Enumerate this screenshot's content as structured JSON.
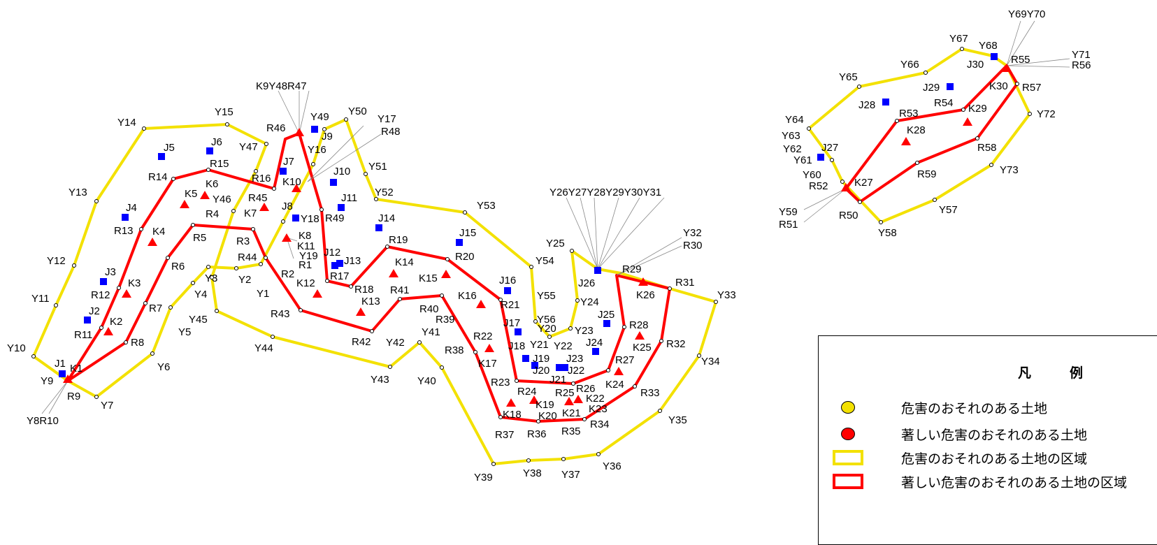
{
  "legend": {
    "title": "凡　例",
    "items": [
      {
        "symbol": "yellow-circle",
        "label": "危害のおそれのある土地"
      },
      {
        "symbol": "red-circle",
        "label": "著しい危害のおそれのある土地"
      },
      {
        "symbol": "yellow-rectangle",
        "label": "危害のおそれのある土地の区域"
      },
      {
        "symbol": "red-rectangle",
        "label": "著しい危害のおそれのある土地の区域"
      }
    ]
  },
  "colors": {
    "yellow_zone": "#f3e100",
    "red_zone": "#ff0000",
    "marker_j": "#0000ff",
    "marker_k": "#ff0000"
  },
  "labels": [
    "Y14",
    "Y15",
    "Y13",
    "Y12",
    "Y11",
    "Y10",
    "Y9",
    "Y8R10",
    "Y7",
    "Y6",
    "Y5",
    "Y4",
    "Y45",
    "Y3",
    "Y2",
    "Y1",
    "Y44",
    "Y43",
    "Y42",
    "Y41",
    "Y40",
    "Y39",
    "Y38",
    "Y37",
    "Y36",
    "Y35",
    "Y34",
    "Y33",
    "Y32",
    "R30",
    "R31",
    "Y26Y27Y28Y29Y30Y31",
    "Y25",
    "Y24",
    "Y23",
    "Y22",
    "Y21",
    "Y20",
    "Y56",
    "Y55",
    "Y54",
    "Y53",
    "Y52",
    "Y51",
    "Y50",
    "Y49",
    "Y17",
    "R48",
    "Y16",
    "Y47",
    "Y46",
    "K9Y48R47",
    "R46",
    "J9",
    "J10",
    "J11",
    "R49",
    "J14",
    "R19",
    "J15",
    "R20",
    "J16",
    "R21",
    "J17",
    "J18",
    "J19",
    "J20",
    "J21",
    "J22",
    "J23",
    "J24",
    "J25",
    "J26",
    "R29",
    "K26",
    "R28",
    "K25",
    "R32",
    "R27",
    "K24",
    "R33",
    "R26",
    "K22",
    "K23",
    "R34",
    "R35",
    "K21",
    "K20",
    "R25",
    "K19",
    "R24",
    "R23",
    "K18",
    "R37",
    "R36",
    "K17",
    "R22",
    "R38",
    "R39",
    "R40",
    "K16",
    "K15",
    "R41",
    "K14",
    "K13",
    "R18",
    "R17",
    "J13",
    "J12",
    "K12",
    "R42",
    "R43",
    "R44",
    "R2",
    "R1",
    "Y19",
    "K11",
    "K8",
    "Y18",
    "J8",
    "K7",
    "R45",
    "K10",
    "J7",
    "R16",
    "R15",
    "J6",
    "J5",
    "R14",
    "K5",
    "K6",
    "R4",
    "R3",
    "R5",
    "K4",
    "J4",
    "R13",
    "R6",
    "J3",
    "K3",
    "R12",
    "R7",
    "J2",
    "K2",
    "R11",
    "R8",
    "J1",
    "K1",
    "R9",
    "Y69Y70",
    "Y67",
    "Y68",
    "J30",
    "R55",
    "Y71",
    "R56",
    "Y66",
    "Y65",
    "K30",
    "R57",
    "J29",
    "R54",
    "K29",
    "Y72",
    "J28",
    "R53",
    "K28",
    "Y64",
    "Y63",
    "Y62",
    "J27",
    "R58",
    "Y61",
    "Y60",
    "R52",
    "K27",
    "R59",
    "Y73",
    "Y59",
    "R51",
    "R50",
    "Y58",
    "Y57"
  ]
}
